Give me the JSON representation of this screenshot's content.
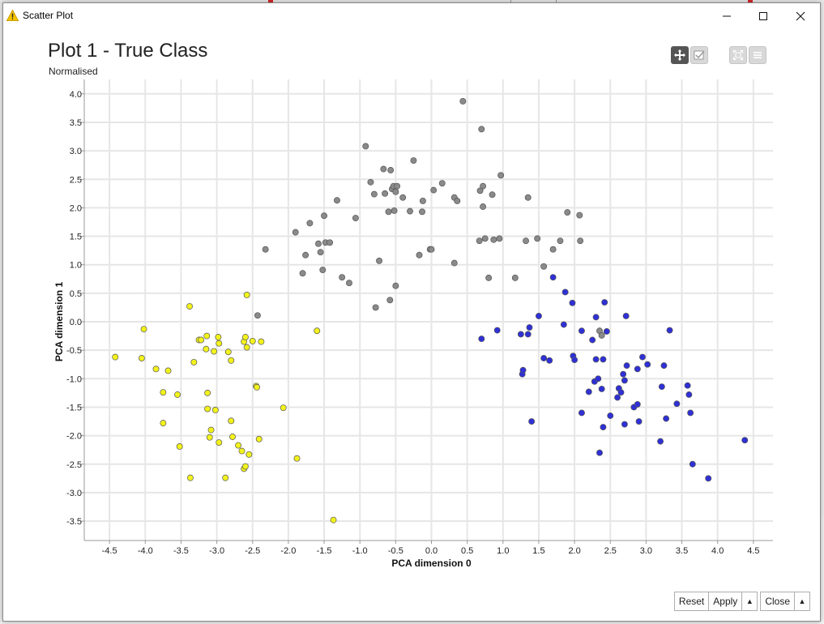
{
  "window": {
    "title": "Scatter Plot",
    "title_icon": "warning-icon",
    "controls": [
      "minimize-icon",
      "maximize-icon",
      "close-icon"
    ]
  },
  "plot": {
    "title": "Plot 1 - True Class",
    "subtitle": "Normalised"
  },
  "toolbar": {
    "buttons": [
      "move-icon",
      "select-icon",
      "fullscreen-icon",
      "menu-icon"
    ]
  },
  "footer": {
    "reset_label": "Reset",
    "apply_label": "Apply",
    "close_label": "Close"
  },
  "colors": {
    "yellow": "#f2f21c",
    "gray": "#8a8a8a",
    "blue": "#2f30d6",
    "grid": "#e6e6e6"
  },
  "chart_data": {
    "type": "scatter",
    "title": "Plot 1 - True Class",
    "subtitle": "Normalised",
    "xlabel": "PCA dimension 0",
    "ylabel": "PCA dimension 1",
    "xlim": [
      -4.8,
      4.8
    ],
    "ylim": [
      -3.9,
      4.2
    ],
    "xticks": [
      "-4.5",
      "-4.0",
      "-3.5",
      "-3.0",
      "-2.5",
      "-2.0",
      "-1.5",
      "-1.0",
      "-0.5",
      "0.0",
      "0.5",
      "1.0",
      "1.5",
      "2.0",
      "2.5",
      "3.0",
      "3.5",
      "4.0",
      "4.5"
    ],
    "yticks": [
      "4.0",
      "3.5",
      "3.0",
      "2.5",
      "2.0",
      "1.5",
      "1.0",
      "0.5",
      "0.0",
      "-0.5",
      "-1.0",
      "-1.5",
      "-2.0",
      "-2.5",
      "-3.0",
      "-3.5"
    ],
    "grid": true,
    "series": [
      {
        "color": "#f2f21c",
        "points": [
          [
            -4.42,
            -0.62
          ],
          [
            -4.05,
            -0.64
          ],
          [
            -4.02,
            -0.13
          ],
          [
            -3.85,
            -0.83
          ],
          [
            -3.75,
            -1.24
          ],
          [
            -3.75,
            -1.78
          ],
          [
            -3.68,
            -0.86
          ],
          [
            -3.55,
            -1.28
          ],
          [
            -3.52,
            -2.19
          ],
          [
            -3.38,
            0.27
          ],
          [
            -3.37,
            -2.74
          ],
          [
            -3.32,
            -0.71
          ],
          [
            -3.25,
            -0.32
          ],
          [
            -3.22,
            -0.32
          ],
          [
            -3.15,
            -0.48
          ],
          [
            -3.14,
            -0.25
          ],
          [
            -3.13,
            -1.25
          ],
          [
            -3.13,
            -1.53
          ],
          [
            -3.1,
            -2.03
          ],
          [
            -3.08,
            -1.9
          ],
          [
            -3.04,
            -0.52
          ],
          [
            -3.02,
            -1.55
          ],
          [
            -2.98,
            -0.27
          ],
          [
            -2.97,
            -0.38
          ],
          [
            -2.97,
            -2.12
          ],
          [
            -2.88,
            -2.74
          ],
          [
            -2.84,
            -0.53
          ],
          [
            -2.8,
            -1.74
          ],
          [
            -2.8,
            -0.68
          ],
          [
            -2.78,
            -2.02
          ],
          [
            -2.7,
            -2.17
          ],
          [
            -2.65,
            -2.27
          ],
          [
            -2.62,
            -2.58
          ],
          [
            -2.62,
            -0.35
          ],
          [
            -2.6,
            -0.27
          ],
          [
            -2.6,
            -2.54
          ],
          [
            -2.58,
            0.47
          ],
          [
            -2.58,
            -0.45
          ],
          [
            -2.55,
            -2.33
          ],
          [
            -2.5,
            -0.34
          ],
          [
            -2.45,
            -1.13
          ],
          [
            -2.44,
            -1.15
          ],
          [
            -2.41,
            -2.06
          ],
          [
            -2.38,
            -0.35
          ],
          [
            -2.07,
            -1.51
          ],
          [
            -1.88,
            -2.4
          ],
          [
            -1.6,
            -0.16
          ],
          [
            -1.37,
            -3.48
          ]
        ]
      },
      {
        "color": "#8a8a8a",
        "points": [
          [
            -2.43,
            0.11
          ],
          [
            -2.32,
            1.27
          ],
          [
            -1.9,
            1.57
          ],
          [
            -1.8,
            0.85
          ],
          [
            -1.76,
            1.17
          ],
          [
            -1.7,
            1.73
          ],
          [
            -1.58,
            1.37
          ],
          [
            -1.55,
            1.22
          ],
          [
            -1.52,
            0.91
          ],
          [
            -1.5,
            1.86
          ],
          [
            -1.48,
            1.39
          ],
          [
            -1.42,
            1.39
          ],
          [
            -1.32,
            2.13
          ],
          [
            -1.25,
            0.78
          ],
          [
            -1.15,
            0.68
          ],
          [
            -1.06,
            1.82
          ],
          [
            -0.92,
            3.08
          ],
          [
            -0.85,
            2.45
          ],
          [
            -0.8,
            2.24
          ],
          [
            -0.78,
            0.25
          ],
          [
            -0.73,
            1.07
          ],
          [
            -0.67,
            2.68
          ],
          [
            -0.65,
            2.25
          ],
          [
            -0.6,
            1.93
          ],
          [
            -0.58,
            0.38
          ],
          [
            -0.57,
            2.66
          ],
          [
            -0.55,
            2.33
          ],
          [
            -0.53,
            2.38
          ],
          [
            -0.52,
            1.95
          ],
          [
            -0.5,
            0.63
          ],
          [
            -0.5,
            2.28
          ],
          [
            -0.48,
            2.38
          ],
          [
            -0.4,
            2.18
          ],
          [
            -0.3,
            1.94
          ],
          [
            -0.25,
            2.83
          ],
          [
            -0.17,
            1.17
          ],
          [
            -0.13,
            1.93
          ],
          [
            -0.12,
            2.12
          ],
          [
            -0.02,
            1.27
          ],
          [
            0.0,
            1.27
          ],
          [
            0.03,
            2.31
          ],
          [
            0.15,
            2.43
          ],
          [
            0.32,
            1.03
          ],
          [
            0.32,
            2.18
          ],
          [
            0.36,
            2.12
          ],
          [
            0.44,
            3.87
          ],
          [
            0.67,
            1.42
          ],
          [
            0.68,
            2.3
          ],
          [
            0.7,
            3.38
          ],
          [
            0.72,
            2.38
          ],
          [
            0.72,
            2.02
          ],
          [
            0.75,
            1.46
          ],
          [
            0.8,
            0.77
          ],
          [
            0.85,
            2.23
          ],
          [
            0.87,
            1.44
          ],
          [
            0.95,
            1.46
          ],
          [
            0.97,
            2.57
          ],
          [
            1.17,
            0.77
          ],
          [
            1.32,
            1.42
          ],
          [
            1.35,
            2.18
          ],
          [
            1.48,
            1.46
          ],
          [
            1.57,
            0.97
          ],
          [
            1.7,
            1.27
          ],
          [
            1.8,
            1.42
          ],
          [
            1.9,
            1.92
          ],
          [
            2.07,
            1.87
          ],
          [
            2.08,
            1.42
          ],
          [
            2.35,
            -0.16
          ],
          [
            2.38,
            -0.24
          ]
        ]
      },
      {
        "color": "#2f30d6",
        "points": [
          [
            0.7,
            -0.3
          ],
          [
            0.92,
            -0.15
          ],
          [
            1.25,
            -0.22
          ],
          [
            1.27,
            -0.92
          ],
          [
            1.28,
            -0.85
          ],
          [
            1.35,
            -0.22
          ],
          [
            1.37,
            -0.1
          ],
          [
            1.4,
            -1.75
          ],
          [
            1.5,
            0.1
          ],
          [
            1.57,
            -0.64
          ],
          [
            1.65,
            -0.68
          ],
          [
            1.7,
            0.78
          ],
          [
            1.85,
            -0.05
          ],
          [
            1.87,
            0.52
          ],
          [
            1.97,
            0.33
          ],
          [
            1.98,
            -0.6
          ],
          [
            2.0,
            -0.67
          ],
          [
            2.1,
            -1.6
          ],
          [
            2.1,
            -0.16
          ],
          [
            2.2,
            -1.23
          ],
          [
            2.25,
            -0.32
          ],
          [
            2.28,
            -1.05
          ],
          [
            2.3,
            0.08
          ],
          [
            2.3,
            -0.66
          ],
          [
            2.33,
            -1.0
          ],
          [
            2.35,
            -2.3
          ],
          [
            2.38,
            -1.18
          ],
          [
            2.4,
            -0.66
          ],
          [
            2.4,
            -1.85
          ],
          [
            2.42,
            0.34
          ],
          [
            2.45,
            -0.17
          ],
          [
            2.5,
            -1.65
          ],
          [
            2.6,
            -1.33
          ],
          [
            2.62,
            -1.17
          ],
          [
            2.65,
            -1.24
          ],
          [
            2.68,
            -0.92
          ],
          [
            2.7,
            -1.8
          ],
          [
            2.7,
            -1.03
          ],
          [
            2.72,
            0.1
          ],
          [
            2.73,
            -0.77
          ],
          [
            2.83,
            -1.5
          ],
          [
            2.88,
            -1.45
          ],
          [
            2.88,
            -0.83
          ],
          [
            2.9,
            -1.75
          ],
          [
            2.95,
            -0.62
          ],
          [
            3.02,
            -0.75
          ],
          [
            3.2,
            -2.1
          ],
          [
            3.22,
            -1.14
          ],
          [
            3.25,
            -0.77
          ],
          [
            3.28,
            -1.7
          ],
          [
            3.33,
            -0.15
          ],
          [
            3.43,
            -1.44
          ],
          [
            3.58,
            -1.12
          ],
          [
            3.6,
            -1.28
          ],
          [
            3.62,
            -1.6
          ],
          [
            3.65,
            -2.5
          ],
          [
            3.87,
            -2.75
          ],
          [
            4.38,
            -2.08
          ]
        ]
      }
    ]
  }
}
